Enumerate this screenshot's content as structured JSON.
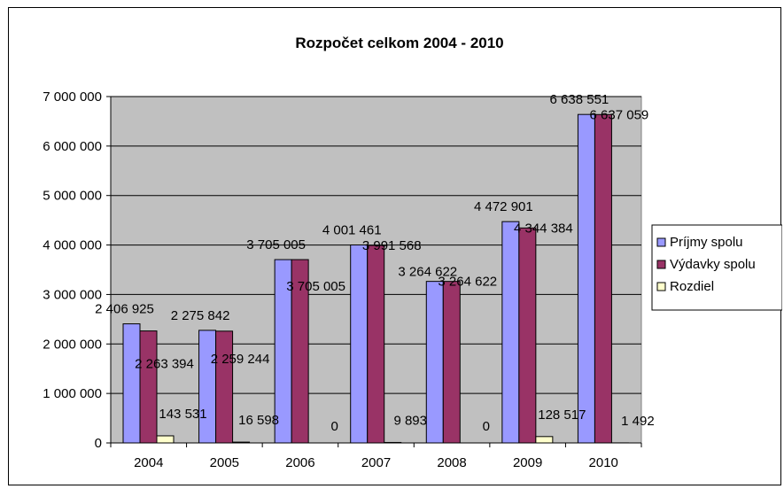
{
  "chart_data": {
    "type": "bar",
    "title": "Rozpočet celkom 2004 - 2010",
    "xlabel": "",
    "ylabel": "",
    "categories": [
      "2004",
      "2005",
      "2006",
      "2007",
      "2008",
      "2009",
      "2010"
    ],
    "ylim": [
      0,
      7000000
    ],
    "yticks": [
      {
        "value": 0,
        "label": "0"
      },
      {
        "value": 1000000,
        "label": "1 000 000"
      },
      {
        "value": 2000000,
        "label": "2 000 000"
      },
      {
        "value": 3000000,
        "label": "3 000 000"
      },
      {
        "value": 4000000,
        "label": "4 000 000"
      },
      {
        "value": 5000000,
        "label": "5 000 000"
      },
      {
        "value": 6000000,
        "label": "6 000 000"
      },
      {
        "value": 7000000,
        "label": "7 000 000"
      }
    ],
    "grid": true,
    "legend_position": "right",
    "plot_background": "#c0c0c0",
    "series": [
      {
        "name": "Príjmy spolu",
        "color": "#9999ff",
        "values": [
          2406925,
          2275842,
          3705005,
          4001461,
          3264622,
          4472901,
          6638551
        ],
        "labels": [
          "2 406 925",
          "2 275 842",
          "3 705 005",
          "4 001 461",
          "3 264 622",
          "4 472 901",
          "6 638 551"
        ]
      },
      {
        "name": "Výdavky spolu",
        "color": "#993366",
        "values": [
          2263394,
          2259244,
          3705005,
          3991568,
          3264622,
          4344384,
          6637059
        ],
        "labels": [
          "2 263 394",
          "2 259 244",
          "3 705 005",
          "3 991 568",
          "3 264 622",
          "4 344 384",
          "6 637 059"
        ]
      },
      {
        "name": "Rozdiel",
        "color": "#ffffcc",
        "values": [
          143531,
          16598,
          0,
          9893,
          0,
          128517,
          1492
        ],
        "labels": [
          "143 531",
          "16 598",
          "0",
          "9 893",
          "0",
          "128 517",
          "1 492"
        ]
      }
    ]
  }
}
